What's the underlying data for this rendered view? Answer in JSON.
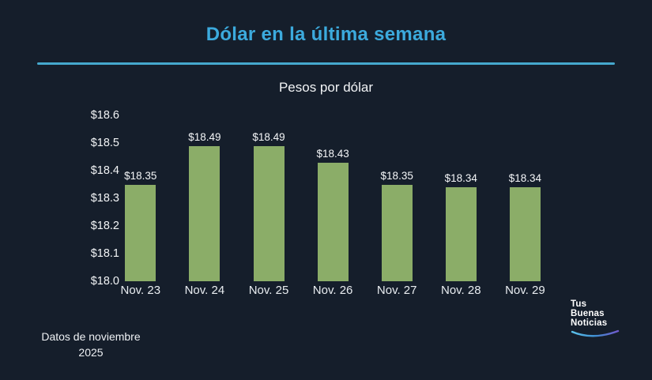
{
  "header": {
    "title": "Dólar en la última semana",
    "subtitle": "Pesos por dólar"
  },
  "chart_data": {
    "type": "bar",
    "title": "Dólar en la última semana",
    "subtitle": "Pesos por dólar",
    "categories": [
      "Nov. 23",
      "Nov. 24",
      "Nov. 25",
      "Nov. 26",
      "Nov. 27",
      "Nov. 28",
      "Nov. 29"
    ],
    "values": [
      18.35,
      18.49,
      18.49,
      18.43,
      18.35,
      18.34,
      18.34
    ],
    "value_labels": [
      "$18.35",
      "$18.49",
      "$18.49",
      "$18.43",
      "$18.35",
      "$18.34",
      "$18.34"
    ],
    "ytick_values": [
      18.0,
      18.1,
      18.2,
      18.3,
      18.4,
      18.5,
      18.6
    ],
    "ytick_labels": [
      "$18.0",
      "$18.1",
      "$18.2",
      "$18.3",
      "$18.4",
      "$18.5",
      "$18.6"
    ],
    "ylim": [
      18.0,
      18.6
    ],
    "grid": false,
    "legend": null,
    "bar_color": "#8bad68"
  },
  "footer": {
    "note_line1": "Datos de noviembre",
    "note_line2": "2025"
  },
  "logo": {
    "line1": "Tus",
    "line2": "Buenas",
    "line3": "Noticias"
  },
  "colors": {
    "background": "#151e2b",
    "title": "#3caadd",
    "divider": "#45a8ce",
    "bar": "#8bad68",
    "text": "#f2f4f6",
    "swoosh_start": "#5cc3ec",
    "swoosh_mid": "#3f8fd2",
    "swoosh_end": "#7059cc"
  }
}
